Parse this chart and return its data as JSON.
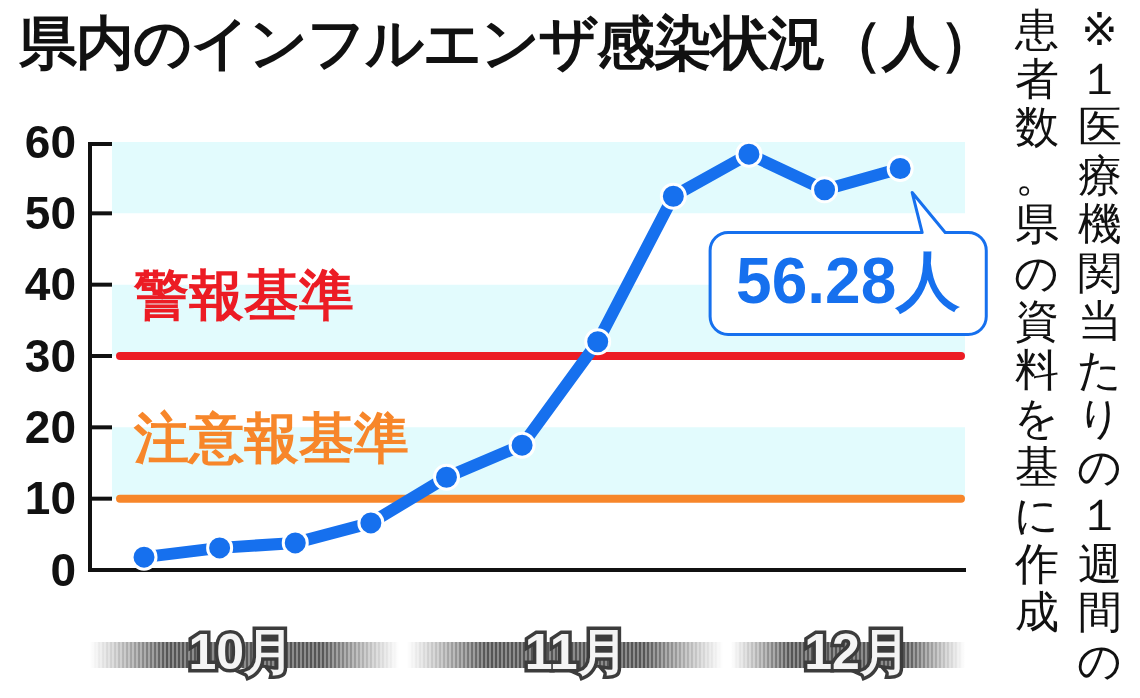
{
  "chart_data": {
    "type": "line",
    "title": "県内のインフルエンザ感染状況（人）",
    "x": [
      "--10-08",
      "--10-15",
      "--10-22",
      "--10-29",
      "--11-05",
      "--11-12",
      "--11-19",
      "--11-26",
      "--12-03",
      "--12-10",
      "--12-17"
    ],
    "series": [
      {
        "color": "#1670ee",
        "values": [
          1.8,
          3.1,
          3.8,
          6.6,
          13.0,
          17.5,
          32.0,
          52.4,
          58.3,
          53.3,
          56.28
        ]
      }
    ],
    "xlim": [
      "--10-03",
      "--12-23"
    ],
    "xticks": [
      {
        "value": "--10-17",
        "label": "10月"
      },
      {
        "value": "--11-17",
        "label": "11月"
      },
      {
        "value": "--12-13",
        "label": "12月"
      }
    ],
    "ylim": [
      0,
      60
    ],
    "yticks": [
      0,
      10,
      20,
      30,
      40,
      50,
      60
    ],
    "bands": [
      {
        "axis": "y",
        "from": 10,
        "to": 20,
        "color": "#e2fbfd"
      },
      {
        "axis": "y",
        "from": 30,
        "to": 40,
        "color": "#e2fbfd"
      },
      {
        "axis": "y",
        "from": 50,
        "to": 60,
        "color": "#e2fbfd"
      }
    ],
    "ref_lines": [
      {
        "axis": "y",
        "value": 30,
        "label": "警報基準",
        "color": "#ec1c24"
      },
      {
        "axis": "y",
        "value": 10,
        "label": "注意報基準",
        "color": "#f7862a"
      }
    ],
    "annotations": [
      {
        "text": "56.28人",
        "x": "--12-17",
        "y": 56.28
      },
      "※１医療機関当たりの１週間の患者数。県の資料を基に作成"
    ],
    "marker": "circle",
    "line_style": "solid"
  }
}
